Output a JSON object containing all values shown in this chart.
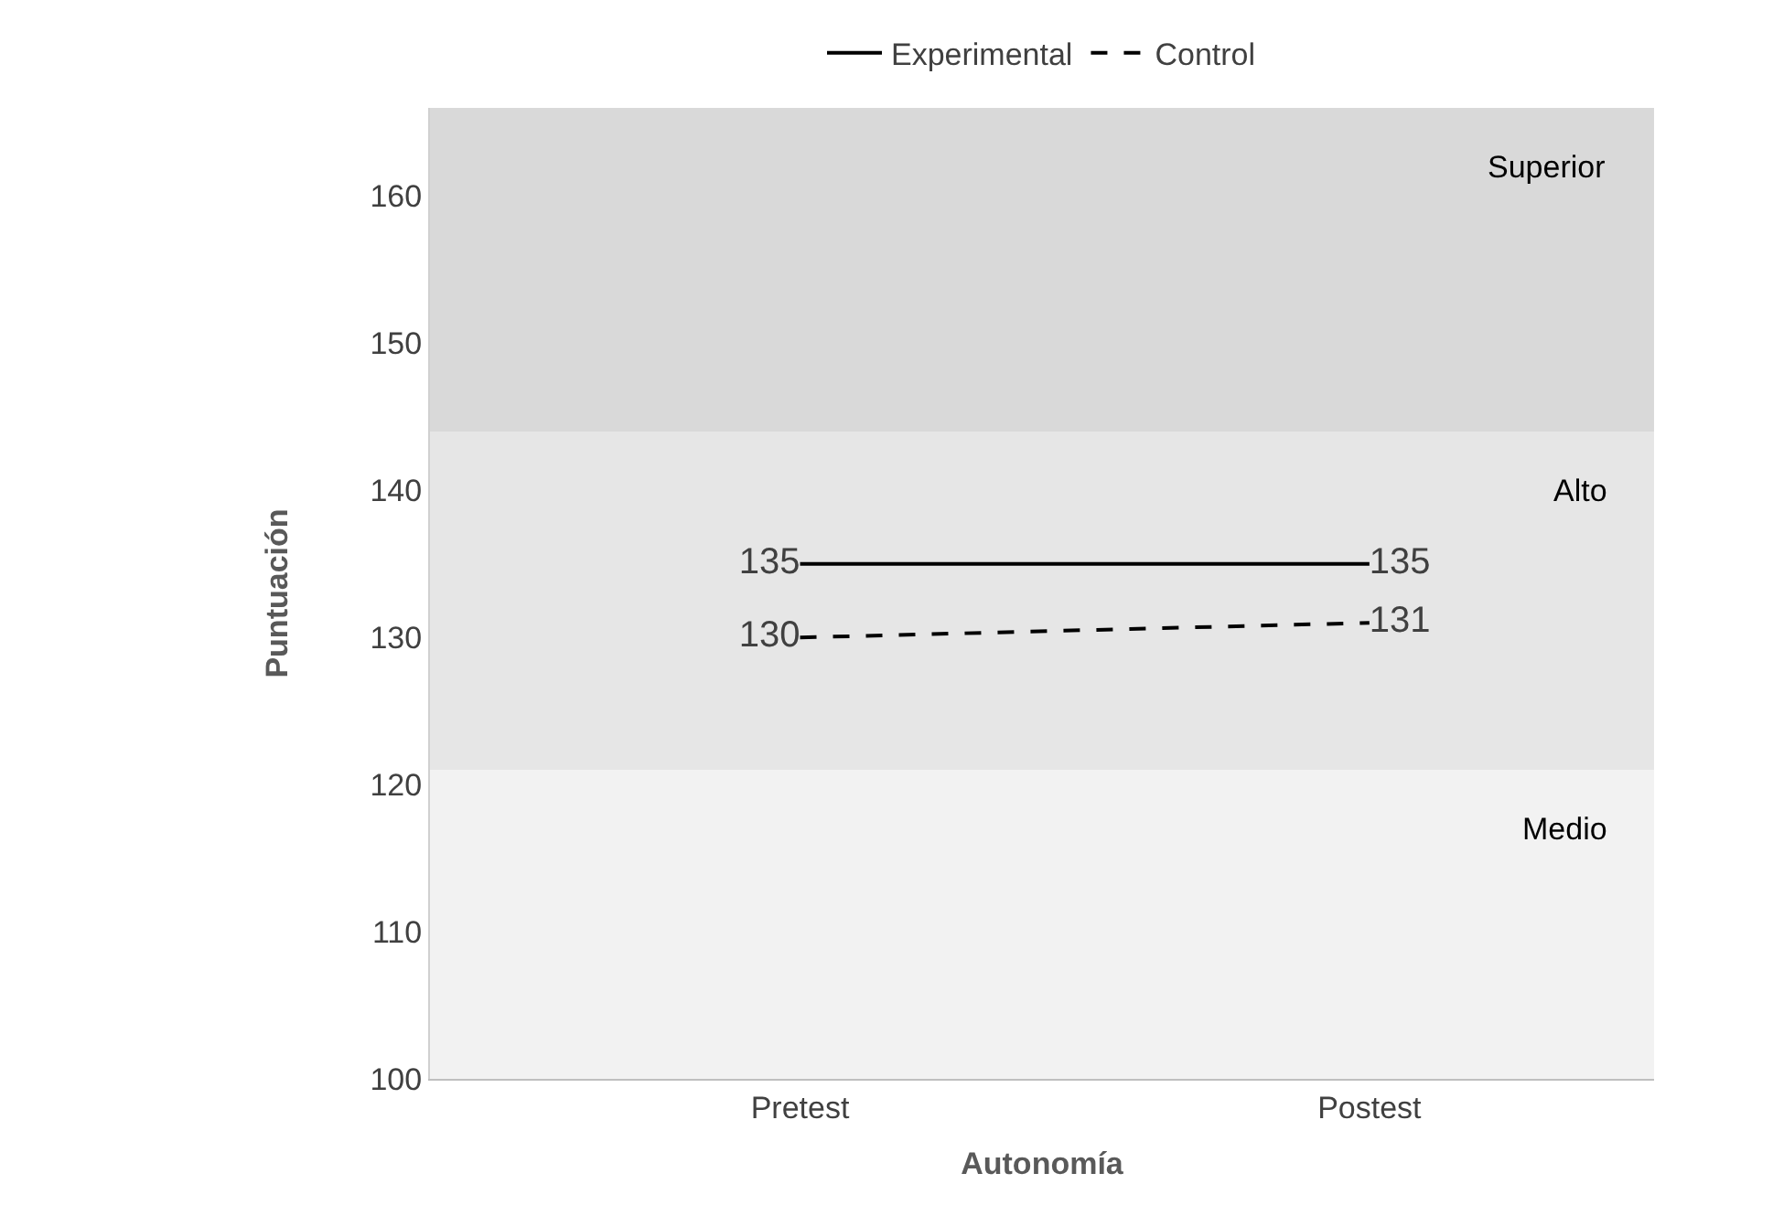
{
  "chart_data": {
    "type": "line",
    "xlabel": "Autonomía",
    "ylabel": "Puntuación",
    "categories": [
      "Pretest",
      "Postest"
    ],
    "series": [
      {
        "name": "Experimental",
        "color": "#000000",
        "line_style": "solid",
        "values": [
          135,
          135
        ]
      },
      {
        "name": "Control",
        "color": "#000000",
        "line_style": "dashed",
        "values": [
          130,
          131
        ]
      }
    ],
    "ylim": [
      100,
      166
    ],
    "yticks": [
      100,
      110,
      120,
      130,
      140,
      150,
      160
    ],
    "bands": [
      {
        "axis": "y",
        "from": 100,
        "to": 121,
        "label": "Medio",
        "color": "#f2f2f2"
      },
      {
        "axis": "y",
        "from": 121,
        "to": 144,
        "label": "Alto",
        "color": "#e6e6e6"
      },
      {
        "axis": "y",
        "from": 144,
        "to": 166,
        "label": "Superior",
        "color": "#d9d9d9"
      }
    ],
    "data_labels": true,
    "grid": false,
    "legend": "top",
    "marker": "none"
  }
}
